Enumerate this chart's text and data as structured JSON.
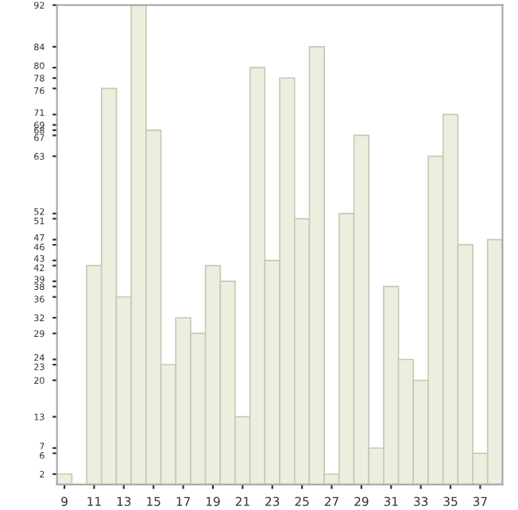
{
  "chart_data": {
    "type": "bar",
    "x": [
      9,
      10,
      11,
      12,
      13,
      14,
      15,
      16,
      17,
      18,
      19,
      20,
      21,
      22,
      23,
      24,
      25,
      26,
      27,
      28,
      29,
      30,
      31,
      32,
      33,
      34,
      35,
      36,
      37,
      38
    ],
    "values": [
      2,
      null,
      42,
      76,
      36,
      92,
      68,
      23,
      32,
      29,
      42,
      39,
      13,
      80,
      43,
      78,
      51,
      84,
      2,
      52,
      67,
      7,
      38,
      24,
      20,
      63,
      71,
      46,
      6,
      47
    ],
    "color": "#eeeedf",
    "xlim": [
      8.5,
      38.5
    ],
    "xticks": [
      9,
      11,
      13,
      15,
      17,
      19,
      21,
      23,
      25,
      27,
      29,
      31,
      33,
      35,
      37
    ],
    "ylim": [
      0,
      92
    ],
    "yticks": [
      2,
      6,
      7,
      13,
      20,
      23,
      24,
      29,
      32,
      36,
      38,
      39,
      42,
      43,
      46,
      47,
      51,
      52,
      63,
      67,
      68,
      69,
      71,
      76,
      78,
      80,
      84,
      92
    ],
    "grid": false
  }
}
